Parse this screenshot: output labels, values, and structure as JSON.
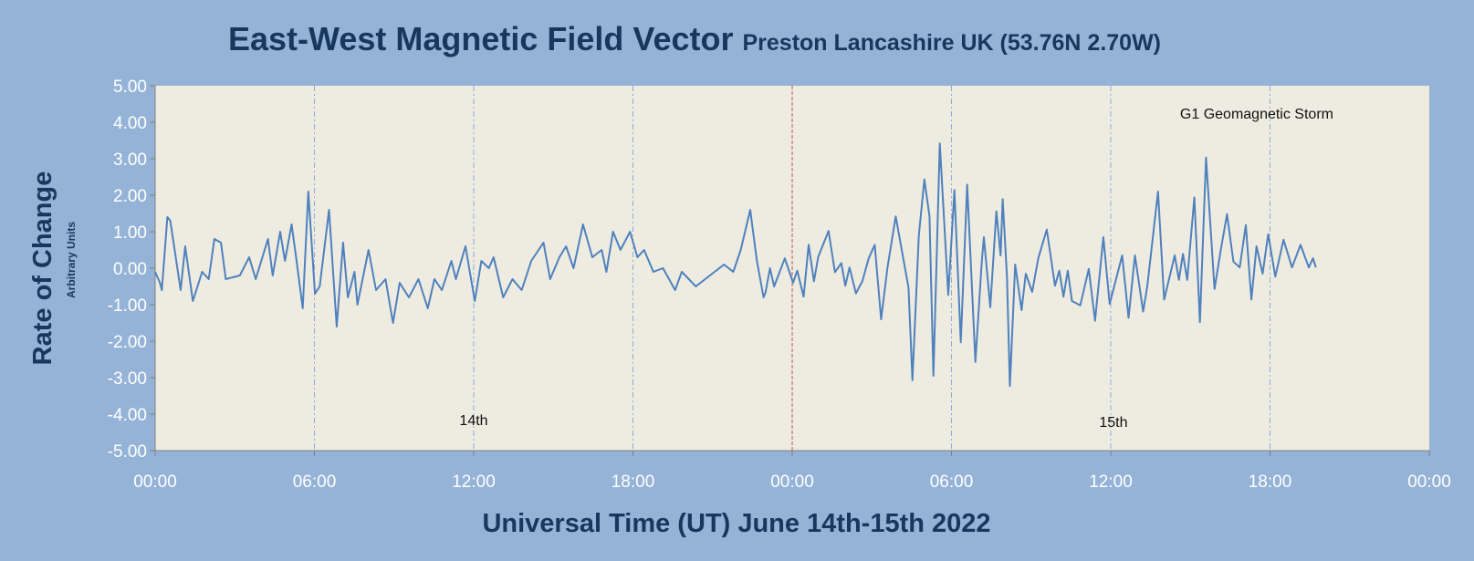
{
  "chart_data": {
    "type": "line",
    "title": "East-West Magnetic Field Vector",
    "subtitle": "Preston Lancashire UK (53.76N 2.70W)",
    "xlabel": "Universal Time (UT) June 14th-15th 2022",
    "ylabel": "Rate of Change",
    "ylabel_units": "Arbitrary Units",
    "xlim_hours": [
      0,
      48
    ],
    "ylim": [
      -5,
      5
    ],
    "y_ticks": [
      "5.00",
      "4.00",
      "3.00",
      "2.00",
      "1.00",
      "0.00",
      "-1.00",
      "-2.00",
      "-3.00",
      "-4.00",
      "-5.00"
    ],
    "y_tick_values": [
      5,
      4,
      3,
      2,
      1,
      0,
      -1,
      -2,
      -3,
      -4,
      -5
    ],
    "x_ticks": [
      "00:00",
      "06:00",
      "12:00",
      "18:00",
      "00:00",
      "06:00",
      "12:00",
      "18:00",
      "00:00"
    ],
    "x_tick_hours": [
      0,
      6,
      12,
      18,
      24,
      30,
      36,
      42,
      48
    ],
    "grid": "vertical dashed every 6 hours; day boundary at 24h",
    "annotations": [
      {
        "text": "G1 Geomagnetic Storm",
        "hour": 41.5,
        "value": 4.1
      },
      {
        "text": "14th",
        "hour": 12,
        "value": -4.3
      },
      {
        "text": "15th",
        "hour": 36.1,
        "value": -4.35
      }
    ],
    "series": [
      {
        "name": "East-West rate of change",
        "x_hours": [
          0,
          0.18,
          0.25,
          0.46,
          0.57,
          0.96,
          1.13,
          1.42,
          1.77,
          2.02,
          2.23,
          2.48,
          2.66,
          3.19,
          3.54,
          3.79,
          4.25,
          4.43,
          4.71,
          4.89,
          5.14,
          5.31,
          5.56,
          5.77,
          6.02,
          6.2,
          6.55,
          6.84,
          7.08,
          7.26,
          7.51,
          7.62,
          8.04,
          8.32,
          8.68,
          8.96,
          9.21,
          9.56,
          9.92,
          10.27,
          10.52,
          10.8,
          11.16,
          11.33,
          11.69,
          12.04,
          12.29,
          12.57,
          12.75,
          13.11,
          13.46,
          13.81,
          14.17,
          14.63,
          14.88,
          15.23,
          15.48,
          15.76,
          16.12,
          16.47,
          16.82,
          17.0,
          17.25,
          17.53,
          17.89,
          18.17,
          18.42,
          18.77,
          19.13,
          19.59,
          19.84,
          20.37,
          20.9,
          21.43,
          21.78,
          22.06,
          22.42,
          22.67,
          22.92,
          23.0,
          23.16,
          23.32,
          23.72,
          24.03,
          24.19,
          24.43,
          24.62,
          24.82,
          24.98,
          25.37,
          25.61,
          25.85,
          26.0,
          26.16,
          26.4,
          26.64,
          26.88,
          27.11,
          27.35,
          27.59,
          27.9,
          28.38,
          28.53,
          28.77,
          28.98,
          29.17,
          29.32,
          29.56,
          29.88,
          30.11,
          30.35,
          30.59,
          30.9,
          31.14,
          31.22,
          31.46,
          31.69,
          31.85,
          31.93,
          32.09,
          32.2,
          32.4,
          32.64,
          32.8,
          33.04,
          33.27,
          33.59,
          33.9,
          34.06,
          34.22,
          34.38,
          34.54,
          34.85,
          35.17,
          35.41,
          35.72,
          35.96,
          36.43,
          36.67,
          36.91,
          37.22,
          37.38,
          37.78,
          38.01,
          38.41,
          38.57,
          38.72,
          38.88,
          39.15,
          39.36,
          39.59,
          39.91,
          40.15,
          40.38,
          40.62,
          40.86,
          41.09,
          41.3,
          41.49,
          41.72,
          41.93,
          42.2,
          42.51,
          42.83,
          43.15,
          43.46,
          43.62,
          43.73
        ],
        "values": [
          -0.1,
          -0.4,
          -0.6,
          1.4,
          1.3,
          -0.6,
          0.6,
          -0.9,
          -0.1,
          -0.3,
          0.8,
          0.7,
          -0.3,
          -0.2,
          0.3,
          -0.3,
          0.8,
          -0.2,
          1.0,
          0.2,
          1.2,
          0.3,
          -1.1,
          2.1,
          -0.7,
          -0.5,
          1.6,
          -1.6,
          0.7,
          -0.8,
          -0.1,
          -1.0,
          0.5,
          -0.6,
          -0.3,
          -1.5,
          -0.4,
          -0.8,
          -0.3,
          -1.1,
          -0.3,
          -0.6,
          0.2,
          -0.3,
          0.6,
          -0.9,
          0.2,
          0.0,
          0.3,
          -0.8,
          -0.3,
          -0.6,
          0.2,
          0.7,
          -0.3,
          0.3,
          0.6,
          0.0,
          1.2,
          0.3,
          0.5,
          -0.1,
          1.0,
          0.5,
          1.0,
          0.3,
          0.5,
          -0.1,
          0.0,
          -0.6,
          -0.1,
          -0.5,
          -0.2,
          0.1,
          -0.1,
          0.5,
          1.6,
          0.2,
          -0.8,
          -0.65,
          0.0,
          -0.5,
          0.27,
          -0.4,
          -0.07,
          -0.78,
          0.64,
          -0.36,
          0.31,
          1.02,
          -0.11,
          0.14,
          -0.48,
          0.02,
          -0.69,
          -0.36,
          0.27,
          0.64,
          -1.4,
          0.02,
          1.42,
          -0.53,
          -3.07,
          0.89,
          2.43,
          1.43,
          -2.95,
          3.42,
          -0.73,
          2.14,
          -2.03,
          2.29,
          -2.57,
          0.18,
          0.85,
          -1.07,
          1.56,
          0.35,
          1.89,
          -0.23,
          -3.23,
          0.1,
          -1.15,
          -0.15,
          -0.65,
          0.27,
          1.06,
          -0.48,
          -0.07,
          -0.78,
          -0.07,
          -0.9,
          -1.02,
          -0.02,
          -1.44,
          0.85,
          -0.98,
          0.35,
          -1.36,
          0.35,
          -1.19,
          -0.48,
          2.1,
          -0.86,
          0.35,
          -0.32,
          0.39,
          -0.32,
          1.94,
          -1.48,
          3.03,
          -0.57,
          0.52,
          1.48,
          0.18,
          0.02,
          1.18,
          -0.86,
          0.6,
          -0.15,
          0.93,
          -0.23,
          0.78,
          0.02,
          0.64,
          0.02,
          0.27,
          0.02
        ]
      }
    ],
    "colors": {
      "background": "#95b3d7",
      "plot_area": "#eeece1",
      "line": "#4f81bd",
      "grid": "#8eaad6",
      "day_boundary": "#c0504d",
      "text": "#17375e"
    }
  }
}
